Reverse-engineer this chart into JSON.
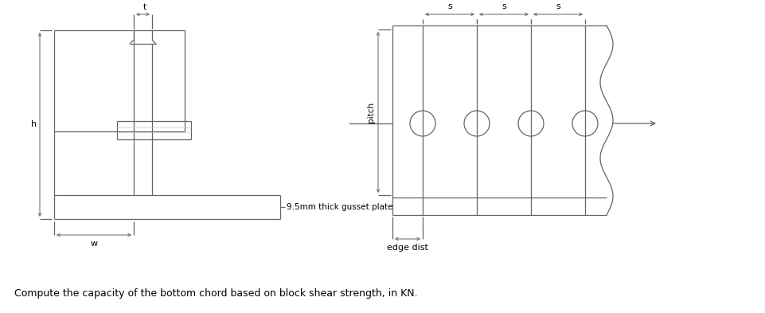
{
  "bg_color": "#ffffff",
  "line_color": "#646464",
  "text_color": "#000000",
  "fig_width": 9.61,
  "fig_height": 3.93,
  "caption": "Compute the capacity of the bottom chord based on block shear strength, in KN.",
  "label_t": "t",
  "label_h": "h",
  "label_w": "w",
  "label_gusset": "9.5mm thick gusset plate",
  "label_s": "s",
  "label_pitch": "pitch",
  "label_edge": "edge dist"
}
